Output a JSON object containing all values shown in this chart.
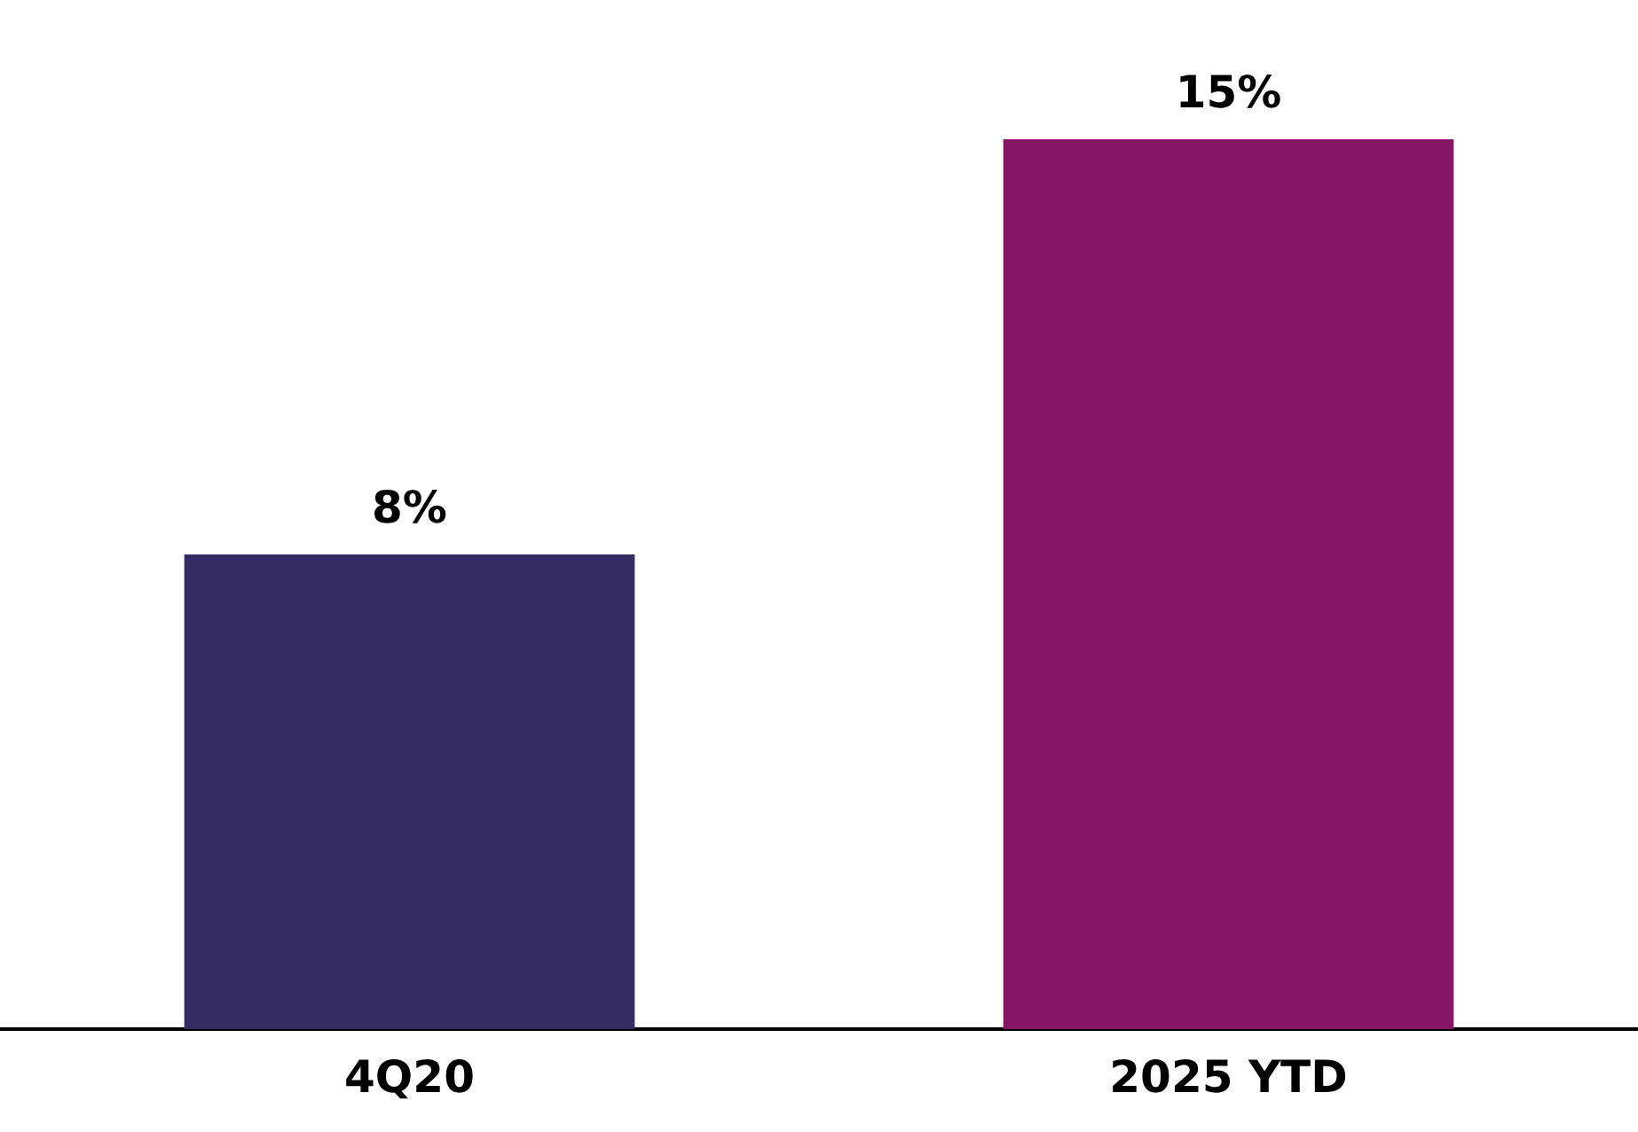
{
  "chart_data": {
    "type": "bar",
    "categories": [
      "4Q20",
      "2025 YTD"
    ],
    "values": [
      8,
      15
    ],
    "colors": [
      "#352c63",
      "#841665"
    ],
    "value_labels": [
      "8%",
      "15%"
    ],
    "grid": false,
    "legend": false,
    "tick_labels": "x"
  }
}
